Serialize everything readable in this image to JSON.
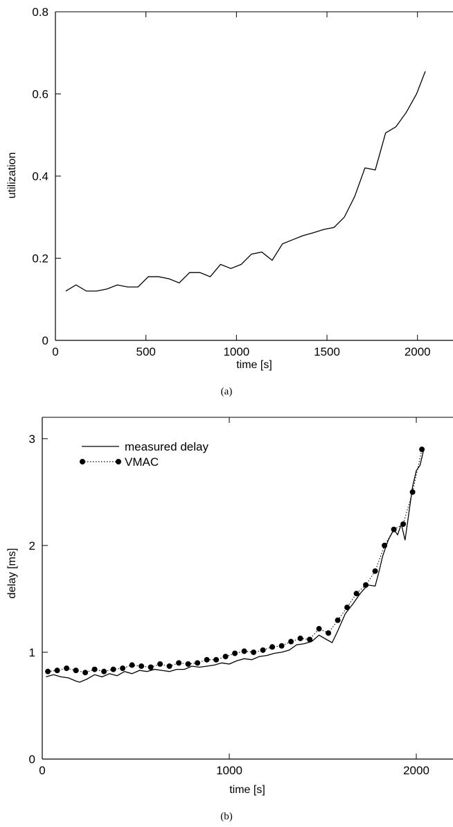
{
  "chart_data": [
    {
      "type": "line",
      "caption": "(a)",
      "xlabel": "time [s]",
      "ylabel": "utilization",
      "xlim": [
        0,
        2200
      ],
      "ylim": [
        0,
        0.8
      ],
      "xticks": [
        0,
        500,
        1000,
        1500,
        2000
      ],
      "yticks": [
        0,
        0.2,
        0.4,
        0.6,
        0.8
      ],
      "xtick_labels": [
        "0",
        "500",
        "1000",
        "1500",
        "2000"
      ],
      "ytick_labels": [
        "0",
        "0.2",
        "0.4",
        "0.6",
        "0.8"
      ],
      "grid": false,
      "series": [
        {
          "style": "solid",
          "x": [
            57,
            114,
            171,
            228,
            285,
            342,
            399,
            456,
            513,
            570,
            627,
            684,
            741,
            798,
            855,
            912,
            969,
            1026,
            1083,
            1140,
            1197,
            1254,
            1311,
            1368,
            1425,
            1482,
            1539,
            1596,
            1653,
            1710,
            1767,
            1824,
            1881,
            1938,
            1995,
            2043
          ],
          "y": [
            0.12,
            0.135,
            0.12,
            0.12,
            0.125,
            0.135,
            0.13,
            0.13,
            0.155,
            0.155,
            0.15,
            0.14,
            0.165,
            0.165,
            0.155,
            0.185,
            0.175,
            0.185,
            0.21,
            0.215,
            0.195,
            0.235,
            0.245,
            0.255,
            0.262,
            0.27,
            0.275,
            0.3,
            0.35,
            0.42,
            0.415,
            0.505,
            0.52,
            0.555,
            0.6,
            0.655
          ]
        }
      ]
    },
    {
      "type": "line",
      "caption": "(b)",
      "xlabel": "time [s]",
      "ylabel": "delay [ms]",
      "xlim": [
        0,
        2200
      ],
      "ylim": [
        0,
        3.2
      ],
      "xticks": [
        0,
        1000,
        2000
      ],
      "yticks": [
        0,
        1,
        2,
        3
      ],
      "xtick_labels": [
        "0",
        "1000",
        "2000"
      ],
      "ytick_labels": [
        "0",
        "1",
        "2",
        "3"
      ],
      "grid": false,
      "legend_position": "top-left",
      "series": [
        {
          "name": "measured delay",
          "style": "solid",
          "x": [
            20,
            60,
            100,
            140,
            180,
            200,
            240,
            280,
            320,
            360,
            400,
            440,
            480,
            520,
            560,
            600,
            640,
            680,
            720,
            760,
            800,
            840,
            880,
            920,
            960,
            1000,
            1040,
            1080,
            1120,
            1160,
            1200,
            1240,
            1280,
            1320,
            1360,
            1400,
            1440,
            1480,
            1520,
            1550,
            1580,
            1620,
            1660,
            1700,
            1740,
            1780,
            1800,
            1820,
            1850,
            1880,
            1900,
            1920,
            1940,
            1960,
            1980,
            2000,
            2020,
            2040
          ],
          "y": [
            0.77,
            0.79,
            0.77,
            0.76,
            0.73,
            0.72,
            0.75,
            0.79,
            0.77,
            0.8,
            0.78,
            0.82,
            0.8,
            0.83,
            0.82,
            0.84,
            0.83,
            0.82,
            0.84,
            0.84,
            0.87,
            0.86,
            0.87,
            0.88,
            0.9,
            0.89,
            0.92,
            0.94,
            0.93,
            0.96,
            0.97,
            0.99,
            1.0,
            1.02,
            1.07,
            1.08,
            1.1,
            1.16,
            1.12,
            1.09,
            1.2,
            1.36,
            1.45,
            1.55,
            1.63,
            1.62,
            1.75,
            1.9,
            2.05,
            2.15,
            2.1,
            2.2,
            2.05,
            2.3,
            2.55,
            2.7,
            2.75,
            2.9
          ]
        },
        {
          "name": "VMAC",
          "style": "dotted-markers",
          "x": [
            30,
            80,
            130,
            180,
            230,
            280,
            330,
            380,
            430,
            480,
            530,
            580,
            630,
            680,
            730,
            780,
            830,
            880,
            930,
            980,
            1030,
            1080,
            1130,
            1180,
            1230,
            1280,
            1330,
            1380,
            1430,
            1480,
            1530,
            1580,
            1630,
            1680,
            1730,
            1780,
            1830,
            1880,
            1930,
            1980,
            2030
          ],
          "y": [
            0.82,
            0.83,
            0.85,
            0.83,
            0.81,
            0.84,
            0.82,
            0.84,
            0.85,
            0.88,
            0.87,
            0.86,
            0.89,
            0.87,
            0.9,
            0.89,
            0.9,
            0.93,
            0.93,
            0.96,
            0.99,
            1.01,
            1.0,
            1.02,
            1.05,
            1.06,
            1.1,
            1.13,
            1.12,
            1.22,
            1.18,
            1.3,
            1.42,
            1.55,
            1.63,
            1.76,
            2.0,
            2.15,
            2.2,
            2.5,
            2.9
          ]
        }
      ]
    }
  ]
}
